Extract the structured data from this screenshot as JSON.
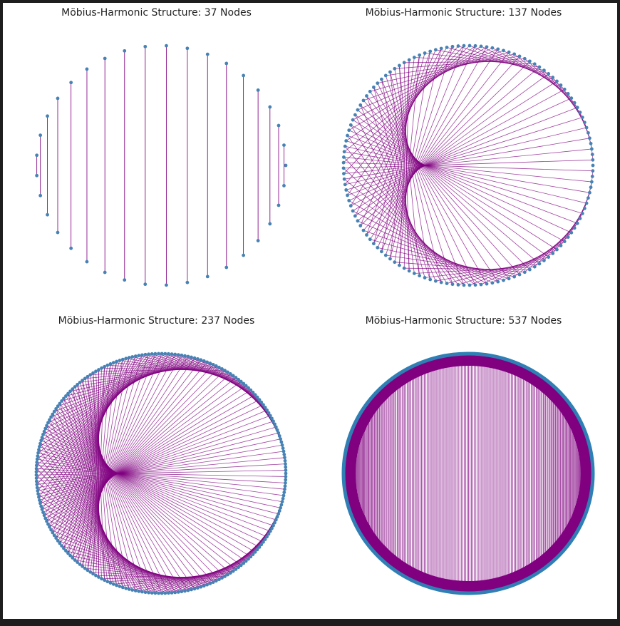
{
  "colors": {
    "background": "#ffffff",
    "edge": "#800080",
    "node": "#4682b4",
    "title_text": "#222222"
  },
  "panels": [
    {
      "title": "Möbius-Harmonic Structure: 37 Nodes",
      "nodes": 37
    },
    {
      "title": "Möbius-Harmonic Structure: 137 Nodes",
      "nodes": 137
    },
    {
      "title": "Möbius-Harmonic Structure: 237 Nodes",
      "nodes": 237
    },
    {
      "title": "Möbius-Harmonic Structure: 537 Nodes",
      "nodes": 537
    }
  ]
}
